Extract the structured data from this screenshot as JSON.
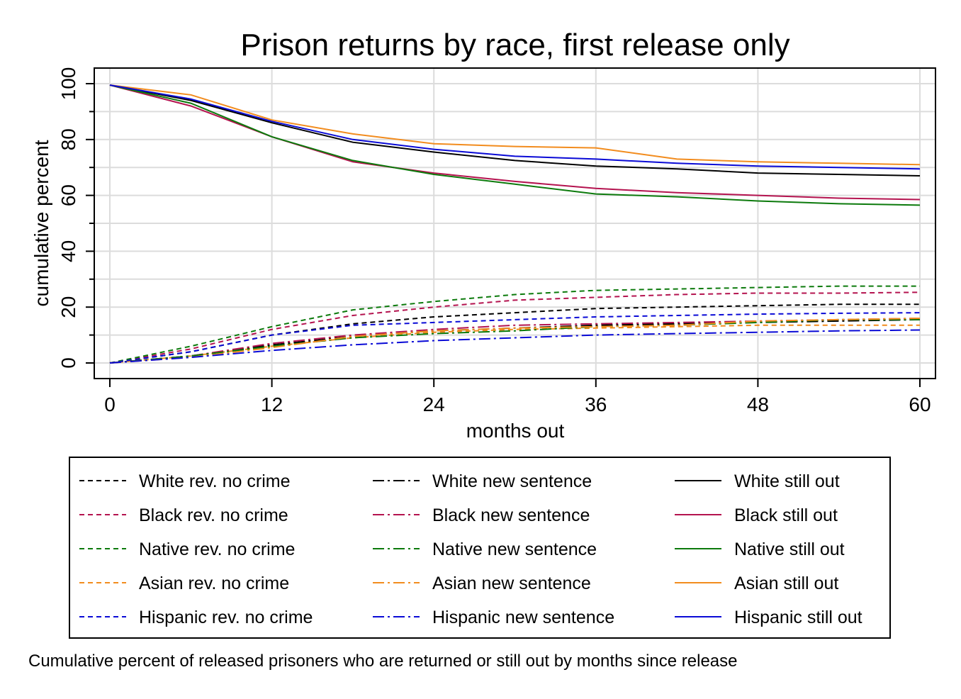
{
  "chart_data": {
    "type": "line",
    "title": "Prison returns by race, first release only",
    "xlabel": "months out",
    "ylabel": "cumulative percent",
    "note": "Cumulative percent of released prisoners who are returned or still out by months since release",
    "xlim": [
      0,
      60
    ],
    "ylim": [
      -5,
      105
    ],
    "xticks": [
      0,
      12,
      24,
      36,
      48,
      60
    ],
    "yticks": [
      0,
      20,
      40,
      60,
      80,
      100
    ],
    "grid": true,
    "legend_position": "bottom",
    "colors": {
      "White": "#000000",
      "Black": "#b4134f",
      "Native": "#0c7a0c",
      "Asian": "#f28c1e",
      "Hispanic": "#0a0ad6"
    },
    "x": [
      0,
      6,
      12,
      18,
      24,
      30,
      36,
      42,
      48,
      54,
      60
    ],
    "series": [
      {
        "name": "White rev. no crime",
        "race": "White",
        "style": "dash",
        "values": [
          0,
          4,
          10,
          14,
          16.5,
          18,
          19.5,
          20,
          20.5,
          21,
          21
        ]
      },
      {
        "name": "Black rev. no crime",
        "race": "Black",
        "style": "dash",
        "values": [
          0,
          5,
          12,
          17,
          20,
          22.5,
          23.5,
          24.5,
          25,
          25,
          25.3
        ]
      },
      {
        "name": "Native rev. no crime",
        "race": "Native",
        "style": "dash",
        "values": [
          0,
          6,
          13,
          19,
          22,
          24.5,
          26,
          26.5,
          27,
          27.5,
          27.5
        ]
      },
      {
        "name": "Asian rev. no crime",
        "race": "Asian",
        "style": "dash",
        "values": [
          0,
          2.5,
          6,
          9,
          11,
          12,
          12.5,
          13,
          13.5,
          13.5,
          13.5
        ]
      },
      {
        "name": "Hispanic rev. no crime",
        "race": "Hispanic",
        "style": "dash",
        "values": [
          0,
          4,
          10,
          13.5,
          14.5,
          15.5,
          16.5,
          17,
          17.5,
          17.8,
          18
        ]
      },
      {
        "name": "White new sentence",
        "race": "White",
        "style": "dashdot",
        "values": [
          0,
          2.5,
          6.5,
          9.5,
          11.5,
          12.5,
          13.5,
          14,
          14.5,
          15,
          15.5
        ]
      },
      {
        "name": "Black new sentence",
        "race": "Black",
        "style": "dashdot",
        "values": [
          0,
          2.5,
          7,
          10,
          12,
          13.5,
          14,
          14.5,
          15,
          15.5,
          16
        ]
      },
      {
        "name": "Native new sentence",
        "race": "Native",
        "style": "dashdot",
        "values": [
          0,
          2.5,
          6,
          9,
          10.5,
          11.5,
          13,
          13.5,
          14.5,
          15.5,
          15.5
        ]
      },
      {
        "name": "Asian new sentence",
        "race": "Asian",
        "style": "dashdot",
        "values": [
          0,
          2,
          5.5,
          9.5,
          11.5,
          12.5,
          13,
          13.5,
          15,
          15.5,
          16
        ]
      },
      {
        "name": "Hispanic new sentence",
        "race": "Hispanic",
        "style": "dashdot",
        "values": [
          0,
          2,
          4.5,
          6.5,
          8,
          9,
          10,
          10.5,
          11,
          11.5,
          11.8
        ]
      },
      {
        "name": "White still out",
        "race": "White",
        "style": "solid",
        "values": [
          99.5,
          94,
          86,
          79,
          75.5,
          72.5,
          70.5,
          69.5,
          68,
          67.5,
          67
        ]
      },
      {
        "name": "Black still out",
        "race": "Black",
        "style": "solid",
        "values": [
          99.5,
          92,
          81,
          72,
          68,
          65,
          62.5,
          61,
          60,
          59,
          58.5
        ]
      },
      {
        "name": "Native still out",
        "race": "Native",
        "style": "solid",
        "values": [
          99.5,
          93,
          81,
          72.5,
          67.5,
          64,
          60.5,
          59.5,
          58,
          57,
          56.5
        ]
      },
      {
        "name": "Asian still out",
        "race": "Asian",
        "style": "solid",
        "values": [
          99.5,
          96,
          87,
          82,
          78.5,
          77.5,
          77,
          73,
          72,
          71.5,
          71
        ]
      },
      {
        "name": "Hispanic still out",
        "race": "Hispanic",
        "style": "solid",
        "values": [
          99.5,
          94.5,
          86.5,
          80,
          76.5,
          74,
          73,
          71.5,
          70.5,
          70,
          69.5
        ]
      }
    ]
  }
}
